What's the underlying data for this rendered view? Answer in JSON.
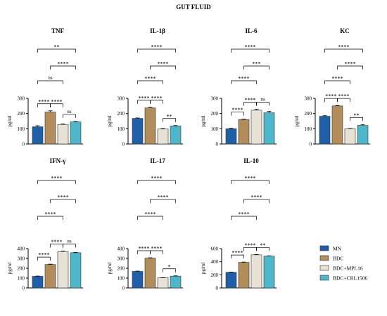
{
  "figure_title": "GUT FLUID",
  "colors": {
    "MN": "#1f5fa8",
    "BDC": "#b38c5c",
    "BDC+MPL16": "#e8e1d6",
    "BDC+CRL1506": "#4db6c9"
  },
  "legend": {
    "placement": "right",
    "items": [
      "MN",
      "BDC",
      "BDC+MPL16",
      "BDC+CRL1506"
    ]
  },
  "chart_data": [
    {
      "type": "bar",
      "title": "TNF",
      "ylabel": "pg/ml",
      "ylim": [
        0,
        300
      ],
      "yticks": [
        0,
        100,
        200,
        300
      ],
      "categories": [
        "MN",
        "BDC",
        "BDC+MPL16",
        "BDC+CRL1506"
      ],
      "values": [
        113,
        210,
        128,
        145
      ],
      "errors": [
        7,
        8,
        4,
        3
      ],
      "comparisons": [
        {
          "a": 0,
          "b": 1,
          "label": "****"
        },
        {
          "a": 1,
          "b": 2,
          "label": "****"
        },
        {
          "a": 2,
          "b": 3,
          "label": "ns"
        },
        {
          "a": 0,
          "b": 2,
          "label": "ns"
        },
        {
          "a": 1,
          "b": 3,
          "label": "****"
        },
        {
          "a": 0,
          "b": 3,
          "label": "**"
        }
      ]
    },
    {
      "type": "bar",
      "title": "IL-1β",
      "ylabel": "pg/ml",
      "ylim": [
        0,
        300
      ],
      "yticks": [
        0,
        100,
        200,
        300
      ],
      "categories": [
        "MN",
        "BDC",
        "BDC+MPL16",
        "BDC+CRL1506"
      ],
      "values": [
        168,
        237,
        98,
        118
      ],
      "errors": [
        3,
        4,
        3,
        3
      ],
      "comparisons": [
        {
          "a": 0,
          "b": 1,
          "label": "****"
        },
        {
          "a": 1,
          "b": 2,
          "label": "****"
        },
        {
          "a": 2,
          "b": 3,
          "label": "**"
        },
        {
          "a": 0,
          "b": 2,
          "label": "****"
        },
        {
          "a": 1,
          "b": 3,
          "label": "****"
        },
        {
          "a": 0,
          "b": 3,
          "label": "****"
        }
      ]
    },
    {
      "type": "bar",
      "title": "IL-6",
      "ylabel": "pg/ml",
      "ylim": [
        0,
        300
      ],
      "yticks": [
        0,
        100,
        200,
        300
      ],
      "categories": [
        "MN",
        "BDC",
        "BDC+MPL16",
        "BDC+CRL1506"
      ],
      "values": [
        100,
        160,
        222,
        205
      ],
      "errors": [
        3,
        3,
        6,
        10
      ],
      "comparisons": [
        {
          "a": 0,
          "b": 1,
          "label": "****"
        },
        {
          "a": 1,
          "b": 2,
          "label": "****"
        },
        {
          "a": 2,
          "b": 3,
          "label": "ns"
        },
        {
          "a": 0,
          "b": 2,
          "label": "****"
        },
        {
          "a": 1,
          "b": 3,
          "label": "***"
        },
        {
          "a": 0,
          "b": 3,
          "label": "****"
        }
      ]
    },
    {
      "type": "bar",
      "title": "KC",
      "ylabel": "pg/ml",
      "ylim": [
        0,
        300
      ],
      "yticks": [
        0,
        100,
        200,
        300
      ],
      "categories": [
        "MN",
        "BDC",
        "BDC+MPL16",
        "BDC+CRL1506"
      ],
      "values": [
        182,
        250,
        100,
        122
      ],
      "errors": [
        4,
        3,
        2,
        6
      ],
      "comparisons": [
        {
          "a": 0,
          "b": 1,
          "label": "****"
        },
        {
          "a": 1,
          "b": 2,
          "label": "****"
        },
        {
          "a": 2,
          "b": 3,
          "label": "**"
        },
        {
          "a": 0,
          "b": 2,
          "label": "****"
        },
        {
          "a": 1,
          "b": 3,
          "label": "****"
        },
        {
          "a": 0,
          "b": 3,
          "label": "****"
        }
      ]
    },
    {
      "type": "bar",
      "title": "IFN-γ",
      "ylabel": "pg/ml",
      "ylim": [
        0,
        400
      ],
      "yticks": [
        0,
        100,
        200,
        300,
        400
      ],
      "categories": [
        "MN",
        "BDC",
        "BDC+MPL16",
        "BDC+CRL1506"
      ],
      "values": [
        118,
        238,
        370,
        358
      ],
      "errors": [
        3,
        4,
        4,
        4
      ],
      "comparisons": [
        {
          "a": 0,
          "b": 1,
          "label": "****"
        },
        {
          "a": 1,
          "b": 2,
          "label": "****"
        },
        {
          "a": 2,
          "b": 3,
          "label": "ns"
        },
        {
          "a": 0,
          "b": 2,
          "label": "****"
        },
        {
          "a": 1,
          "b": 3,
          "label": "****"
        },
        {
          "a": 0,
          "b": 3,
          "label": "****"
        }
      ]
    },
    {
      "type": "bar",
      "title": "IL-17",
      "ylabel": "pg/ml",
      "ylim": [
        0,
        400
      ],
      "yticks": [
        0,
        100,
        200,
        300,
        400
      ],
      "categories": [
        "MN",
        "BDC",
        "BDC+MPL16",
        "BDC+CRL1506"
      ],
      "values": [
        168,
        303,
        103,
        120
      ],
      "errors": [
        3,
        4,
        2,
        3
      ],
      "comparisons": [
        {
          "a": 0,
          "b": 1,
          "label": "****"
        },
        {
          "a": 1,
          "b": 2,
          "label": "****"
        },
        {
          "a": 2,
          "b": 3,
          "label": "*"
        },
        {
          "a": 0,
          "b": 2,
          "label": "****"
        },
        {
          "a": 1,
          "b": 3,
          "label": "****"
        },
        {
          "a": 0,
          "b": 3,
          "label": "****"
        }
      ]
    },
    {
      "type": "bar",
      "title": "IL-10",
      "ylabel": "pg/ml",
      "ylim": [
        0,
        600
      ],
      "yticks": [
        0,
        200,
        400,
        600
      ],
      "categories": [
        "MN",
        "BDC",
        "BDC+MPL16",
        "BDC+CRL1506"
      ],
      "values": [
        238,
        390,
        505,
        485
      ],
      "errors": [
        4,
        5,
        6,
        5
      ],
      "comparisons": [
        {
          "a": 0,
          "b": 1,
          "label": "****"
        },
        {
          "a": 1,
          "b": 2,
          "label": "****"
        },
        {
          "a": 2,
          "b": 3,
          "label": "**"
        },
        {
          "a": 0,
          "b": 2,
          "label": "****"
        },
        {
          "a": 1,
          "b": 3,
          "label": "****"
        },
        {
          "a": 0,
          "b": 3,
          "label": "****"
        }
      ]
    }
  ]
}
